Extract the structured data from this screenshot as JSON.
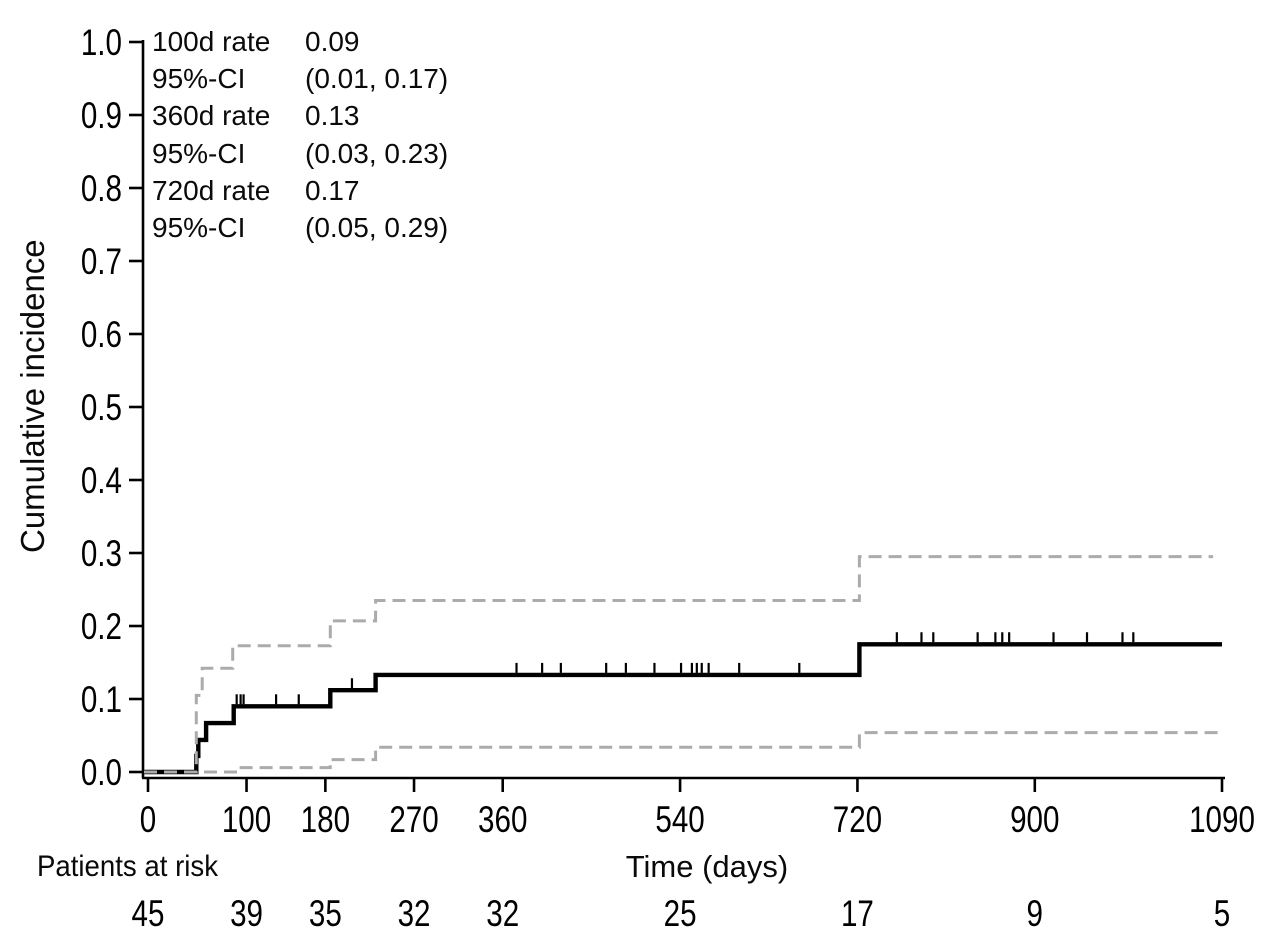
{
  "chart_data": {
    "type": "line",
    "subtype": "step-cumulative-incidence",
    "title": "",
    "xlabel": "Time (days)",
    "ylabel": "Cumulative incidence",
    "xlim": [
      0,
      1090
    ],
    "ylim": [
      0.0,
      1.0
    ],
    "grid": false,
    "legend": "none",
    "x_ticks": [
      0,
      100,
      180,
      270,
      360,
      540,
      720,
      900,
      1090
    ],
    "y_ticks": [
      0.0,
      0.1,
      0.2,
      0.3,
      0.4,
      0.5,
      0.6,
      0.7,
      0.8,
      0.9,
      1.0
    ],
    "series": [
      {
        "name": "Cumulative incidence estimate",
        "role": "estimate",
        "color": "#000000",
        "line_style": "solid",
        "line_width": 4.4,
        "steps": [
          [
            0,
            0
          ],
          [
            49,
            0.022
          ],
          [
            51,
            0.044
          ],
          [
            59,
            0.067
          ],
          [
            87,
            0.09
          ],
          [
            185,
            0.112
          ],
          [
            231,
            0.133
          ],
          [
            722,
            0.175
          ]
        ],
        "end_x": 1090,
        "censor_marks": [
          90,
          94,
          97,
          130,
          153,
          207,
          374,
          400,
          419,
          465,
          485,
          514,
          541,
          552,
          557,
          562,
          569,
          600,
          661,
          760,
          785,
          797,
          842,
          860,
          867,
          874,
          919,
          953,
          989,
          1000
        ]
      },
      {
        "name": "95% CI upper",
        "role": "ci-upper",
        "color": "#ababab",
        "line_style": "dashed",
        "line_width": 3,
        "steps": [
          [
            0,
            0
          ],
          [
            49,
            0.105
          ],
          [
            55,
            0.142
          ],
          [
            86,
            0.173
          ],
          [
            185,
            0.207
          ],
          [
            231,
            0.235
          ],
          [
            722,
            0.295
          ]
        ],
        "end_x": 1081
      },
      {
        "name": "95% CI lower",
        "role": "ci-lower",
        "color": "#ababab",
        "line_style": "dashed",
        "line_width": 3,
        "steps": [
          [
            0,
            0
          ],
          [
            92,
            0.006
          ],
          [
            185,
            0.017
          ],
          [
            231,
            0.034
          ],
          [
            722,
            0.054
          ]
        ],
        "end_x": 1090
      }
    ],
    "annotation": {
      "rows": [
        {
          "label": "100d rate",
          "value": "0.09"
        },
        {
          "label": "95%-CI",
          "value": "(0.01, 0.17)"
        },
        {
          "label": "360d rate",
          "value": "0.13"
        },
        {
          "label": "95%-CI",
          "value": "(0.03, 0.23)"
        },
        {
          "label": "720d rate",
          "value": "0.17"
        },
        {
          "label": "95%-CI",
          "value": "(0.05, 0.29)"
        }
      ]
    },
    "rates": {
      "d100": {
        "rate": 0.09,
        "ci95": [
          0.01,
          0.17
        ]
      },
      "d360": {
        "rate": 0.13,
        "ci95": [
          0.03,
          0.23
        ]
      },
      "d720": {
        "rate": 0.17,
        "ci95": [
          0.05,
          0.29
        ]
      }
    },
    "risk_table": {
      "label": "Patients at risk",
      "times": [
        0,
        100,
        180,
        270,
        360,
        540,
        720,
        900,
        1090
      ],
      "counts": [
        45,
        39,
        35,
        32,
        32,
        25,
        17,
        9,
        5
      ]
    },
    "colors": {
      "estimate": "#000000",
      "confidence_interval": "#ababab",
      "text": "#000000",
      "background": "#ffffff"
    }
  }
}
